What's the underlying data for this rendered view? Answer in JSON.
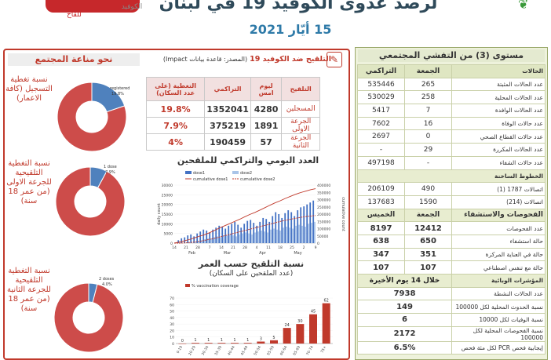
{
  "header": {
    "title": "لرصد عدوى الكوفيد 19 في لبنان",
    "date": "15 أيّار 2021",
    "logo_left_text": "للقاح",
    "logo_mid_text": "الكوفيد"
  },
  "left": {
    "band_title": "نحو مناعة المجتمع",
    "donuts": [
      {
        "label": "نسبة تغطية التسجيل (كافة الاعمار)",
        "slice_label": "registered",
        "slice_pct_text": "19.8%",
        "value": 19.8
      },
      {
        "label": "نسبة التغطية التلقيحية للجرعة الاولى (من عمر 18 سنة)",
        "slice_label": "1 dose",
        "slice_pct_text": "7.9%",
        "value": 7.9
      },
      {
        "label": "نسبة التغطية التلقيحية للجرعة الثانية (من عمر 18 سنة)",
        "slice_label": "2 doses",
        "slice_pct_text": "4.0%",
        "value": 4.0
      }
    ]
  },
  "vacc": {
    "title": "التلقيح ضد الكوفيد 19",
    "source": "(المصدر: قاعدة بيانات Impact)",
    "headers": [
      "التلقيح",
      "ليوم امس",
      "التراكمي",
      "التغطية (على عدد السكان)"
    ],
    "rows": [
      {
        "label": "المسجلين",
        "day": "4280",
        "cum": "1352041",
        "cov": "19.8%"
      },
      {
        "label": "الجرعة الاولى",
        "day": "1891",
        "cum": "375219",
        "cov": "7.9%"
      },
      {
        "label": "الجرعة الثانية",
        "day": "57",
        "cum": "190459",
        "cov": "4%"
      }
    ]
  },
  "daily_chart_title": "العدد اليومي والتراكمي للملقحين",
  "age_chart_title": "نسبة التلقيح حسب العمر",
  "age_chart_subtitle": "(عدد الملقحين على السكان)",
  "chart_data": [
    {
      "type": "bar",
      "legend": [
        "dose1",
        "dose2",
        "cumulative dose1",
        "cumulative dose2"
      ],
      "ylabel": "daily count",
      "y2label": "cumulative count",
      "ylim": [
        0,
        30000
      ],
      "y2lim": [
        0,
        400000
      ],
      "y_ticks": [
        "0",
        "5000",
        "10000",
        "15000",
        "20000",
        "25000",
        "30000"
      ],
      "y2_ticks": [
        "0",
        "50000",
        "100000",
        "150000",
        "200000",
        "250000",
        "300000",
        "350000",
        "400000"
      ],
      "x_ticks": [
        "14",
        "21",
        "28",
        "7",
        "14",
        "21",
        "28",
        "4",
        "11",
        "18",
        "25",
        "2",
        "9"
      ],
      "months": [
        "Feb",
        "Mar",
        "Apr",
        "May"
      ],
      "series": [
        {
          "name": "dose1",
          "values": [
            300,
            1500,
            2500,
            3000,
            4000,
            4500,
            3500,
            5000,
            6000,
            7000,
            6500,
            5500,
            7000,
            8000,
            9000,
            8500,
            7500,
            9000,
            10000,
            11000,
            9500,
            8000,
            10000,
            11500,
            12000,
            10500,
            9000,
            11000,
            13000,
            12500,
            11000,
            14000,
            16000,
            15000,
            13000,
            15500,
            17000,
            16000,
            14000,
            17000,
            18500,
            19000,
            20000,
            21000,
            22000
          ]
        },
        {
          "name": "dose2",
          "values": [
            0,
            0,
            0,
            0,
            0,
            0,
            500,
            1000,
            1500,
            2000,
            2500,
            2500,
            3000,
            3500,
            3000,
            3500,
            4000,
            4500,
            4000,
            3500,
            4500,
            5000,
            5500,
            5000,
            4500,
            5500,
            6000,
            6500,
            6000,
            5500,
            7000,
            7500,
            7000,
            6500,
            8000,
            8500,
            8000,
            7500,
            9000,
            9500,
            9000,
            8500,
            10000,
            10500,
            11000
          ]
        },
        {
          "name": "cumulative dose1",
          "values": [
            0,
            8000,
            16000,
            25000,
            36000,
            48000,
            58000,
            72000,
            88000,
            105000,
            120000,
            135000,
            150000,
            165000,
            182000,
            198000,
            212000,
            228000,
            245000,
            262000,
            278000,
            292000,
            308000,
            322000,
            336000,
            348000,
            358000,
            368000,
            375219
          ]
        },
        {
          "name": "cumulative dose2",
          "values": [
            0,
            0,
            2000,
            5000,
            10000,
            16000,
            24000,
            32000,
            42000,
            52000,
            62000,
            72000,
            82000,
            92000,
            102000,
            112000,
            122000,
            132000,
            142000,
            152000,
            160000,
            168000,
            175000,
            182000,
            186000,
            190459
          ]
        }
      ]
    },
    {
      "type": "bar",
      "legend": [
        "% vaccination coverage"
      ],
      "categories": [
        "0-19",
        "20-29",
        "30-34",
        "35-39",
        "40-44",
        "45-49",
        "50-54",
        "55-59",
        "60-64",
        "65-69",
        "70-74",
        "75+"
      ],
      "values": [
        0,
        1,
        1,
        1,
        1,
        1,
        3,
        5,
        24,
        30,
        45,
        62
      ],
      "ylim": [
        0,
        70
      ],
      "y_ticks": [
        "0",
        "10",
        "20",
        "30",
        "40",
        "50",
        "60",
        "70"
      ]
    }
  ],
  "right": {
    "band_title": "مستوى (3) من التفشي المجتمعي",
    "col_headers": [
      "الحالات",
      "الجمعة",
      "التراكمي"
    ],
    "cases": [
      {
        "name": "عدد الحالات المثبتة",
        "a": "265",
        "b": "535446"
      },
      {
        "name": "عدد الحالات المحلية",
        "a": "258",
        "b": "530029"
      },
      {
        "name": "عدد الحالات الوافدة",
        "a": "7",
        "b": "5417"
      },
      {
        "name": "عدد حالات الوفاة",
        "a": "16",
        "b": "7602"
      },
      {
        "name": "عدد حالات القطاع الصحي",
        "a": "0",
        "b": "2697"
      },
      {
        "name": "عدد الحالات المكررة",
        "a": "29",
        "b": "-"
      },
      {
        "name": "عدد حالات الشفاء",
        "a": "-",
        "b": "497198"
      }
    ],
    "hotline_header": "الخطوط الساخنة",
    "hotlines": [
      {
        "name": "اتصالات 1787 (1)",
        "a": "490",
        "b": "206109"
      },
      {
        "name": "اتصالات (214)",
        "a": "1590",
        "b": "137683"
      }
    ],
    "tests_header": "الفحوصات والاستشفاء",
    "tests_col_a": "الجمعة",
    "tests_col_b": "الخميس",
    "tests": [
      {
        "name": "عدد الفحوصات",
        "a": "12412",
        "b": "8197"
      },
      {
        "name": "حالة استشفاء",
        "a": "650",
        "b": "638"
      },
      {
        "name": "حالة في العناية المركزة",
        "a": "351",
        "b": "347"
      },
      {
        "name": "حالة مع تنفس اصطناعي",
        "a": "107",
        "b": "107"
      }
    ],
    "indicators_header": "المؤشرات الوبائية",
    "indicators_period": "خلال 14 يوم الأخيرة",
    "indicators": [
      {
        "name": "عدد الحالات النشطة",
        "v": "7938"
      },
      {
        "name": "نسبة الحدوث المحلية لكل 100000",
        "v": "149"
      },
      {
        "name": "نسبة الوفيات لكل 10000",
        "v": "6"
      },
      {
        "name": "نسبة الفحوصات المحلية لكل 100000",
        "v": "2172"
      },
      {
        "name": "إيجابية فحص PCR لكل مئة فحص",
        "v": "6.5%"
      }
    ]
  },
  "colors": {
    "red": "#c0392b",
    "donut_red": "#cd4c4a",
    "donut_blue": "#4f81bd",
    "green_bg": "#eef2dc",
    "bar_blue": "#4472c4"
  }
}
